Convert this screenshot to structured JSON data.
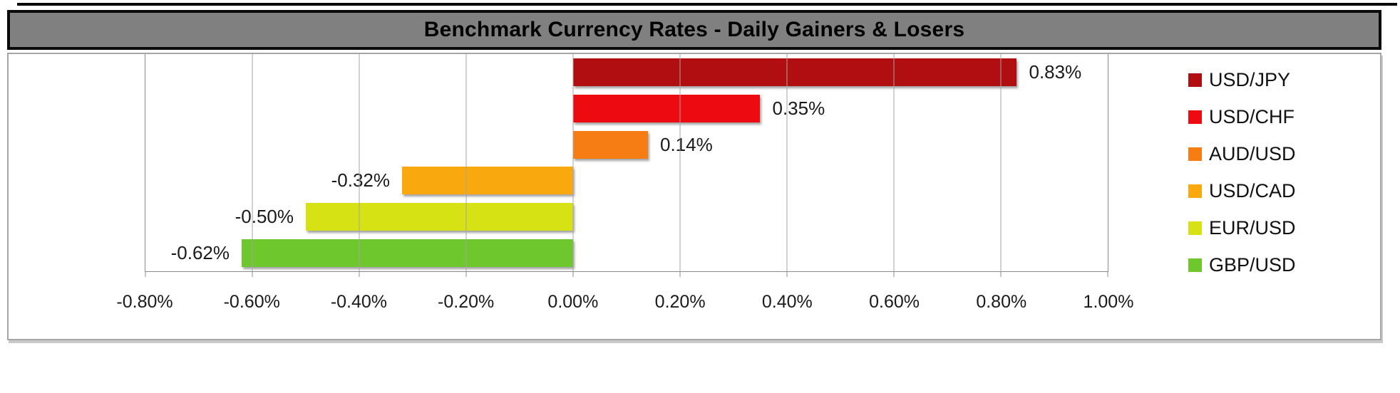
{
  "title": "Benchmark Currency Rates - Daily Gainers & Losers",
  "chart_data": {
    "type": "bar",
    "orientation": "horizontal",
    "title": "Benchmark Currency Rates - Daily Gainers & Losers",
    "xlabel": "",
    "ylabel": "",
    "xlim": [
      -0.8,
      1.0
    ],
    "grid": true,
    "legend_position": "right",
    "value_unit": "percent",
    "x_ticks": [
      "-0.80%",
      "-0.60%",
      "-0.40%",
      "-0.20%",
      "0.00%",
      "0.20%",
      "0.40%",
      "0.60%",
      "0.80%",
      "1.00%"
    ],
    "series": [
      {
        "name": "USD/JPY",
        "value": 0.83,
        "label": "0.83%",
        "color": "#b00e11"
      },
      {
        "name": "USD/CHF",
        "value": 0.35,
        "label": "0.35%",
        "color": "#ee0a11"
      },
      {
        "name": "AUD/USD",
        "value": 0.14,
        "label": "0.14%",
        "color": "#f57d13"
      },
      {
        "name": "USD/CAD",
        "value": -0.32,
        "label": "-0.32%",
        "color": "#f9a90e"
      },
      {
        "name": "EUR/USD",
        "value": -0.5,
        "label": "-0.50%",
        "color": "#d6e214"
      },
      {
        "name": "GBP/USD",
        "value": -0.62,
        "label": "-0.62%",
        "color": "#6fc72e"
      }
    ]
  },
  "colors": {
    "title_bar_bg": "#808080",
    "title_bar_border": "#0a0a0a",
    "title_text": "#000000",
    "frame_border": "#a6a6a6",
    "gridline": "#a6a6a6",
    "axis_text": "#1a1a1a"
  }
}
